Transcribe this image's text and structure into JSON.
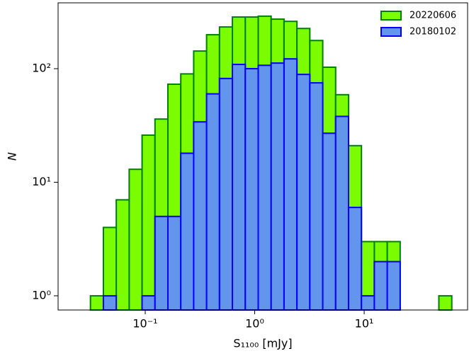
{
  "chart_data": {
    "type": "histogram",
    "xlabel": "S₁₁₀₀ [mJy]",
    "ylabel": "N",
    "bins": [
      0.0316,
      0.0415,
      0.0544,
      0.0714,
      0.0936,
      0.1228,
      0.1611,
      0.2113,
      0.2772,
      0.3636,
      0.477,
      0.6257,
      0.8209,
      1.0769,
      1.4125,
      1.853,
      2.4308,
      3.1887,
      4.183,
      5.4873,
      7.1969,
      9.4406,
      12.385,
      16.246,
      21.31,
      27.95,
      36.67,
      48.1,
      63.1
    ],
    "series": [
      {
        "name": "20220606",
        "color": "#7cfc00",
        "edgecolor": "#008000",
        "values": [
          1,
          4,
          7,
          13,
          26,
          36,
          73,
          90,
          143,
          199,
          233,
          285,
          285,
          290,
          273,
          261,
          226,
          177,
          103,
          59,
          21,
          3,
          3,
          3,
          0,
          0,
          0,
          1
        ]
      },
      {
        "name": "20180102",
        "color": "#6495ed",
        "edgecolor": "#0000ff",
        "values": [
          0,
          1,
          0,
          0,
          1,
          5,
          5,
          18,
          34,
          60,
          82,
          109,
          100,
          107,
          112,
          122,
          89,
          75,
          27,
          38,
          6,
          1,
          2,
          2,
          0,
          0,
          0,
          0
        ]
      }
    ],
    "xscale": "log",
    "yscale": "log",
    "xlim": [
      0.016,
      88
    ],
    "ylim": [
      0.75,
      380
    ],
    "xticks": [
      {
        "value": 0.1,
        "label": "10⁻¹"
      },
      {
        "value": 1,
        "label": "10⁰"
      },
      {
        "value": 10,
        "label": "10¹"
      }
    ],
    "yticks": [
      {
        "value": 1,
        "label": "10⁰"
      },
      {
        "value": 10,
        "label": "10¹"
      },
      {
        "value": 100,
        "label": "10²"
      }
    ],
    "legend": "upper right"
  }
}
